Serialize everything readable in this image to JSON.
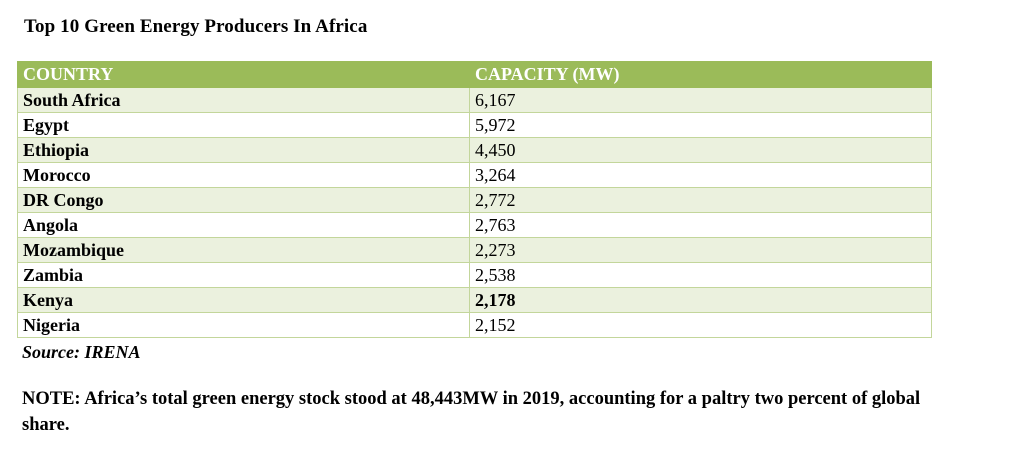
{
  "title": "Top 10 Green Energy Producers In Africa",
  "table": {
    "headers": [
      "COUNTRY",
      "CAPACITY (MW)"
    ],
    "rows": [
      {
        "country": "South Africa",
        "capacity": "6,167"
      },
      {
        "country": "Egypt",
        "capacity": "5,972"
      },
      {
        "country": "Ethiopia",
        "capacity": "4,450"
      },
      {
        "country": "Morocco",
        "capacity": "3,264"
      },
      {
        "country": "DR Congo",
        "capacity": "2,772"
      },
      {
        "country": "Angola",
        "capacity": "2,763"
      },
      {
        "country": "Mozambique",
        "capacity": "2,273"
      },
      {
        "country": "Zambia",
        "capacity": "2,538"
      },
      {
        "country": "Kenya",
        "capacity": "2,178"
      },
      {
        "country": "Nigeria",
        "capacity": "2,152"
      }
    ],
    "header_color": "#9bbb59",
    "band_color": "#ebf1de",
    "border_color": "#c3d69b"
  },
  "source": "Source: IRENA",
  "note": "NOTE: Africa’s total green energy stock stood at 48,443MW in 2019, accounting for a paltry two percent of global share."
}
